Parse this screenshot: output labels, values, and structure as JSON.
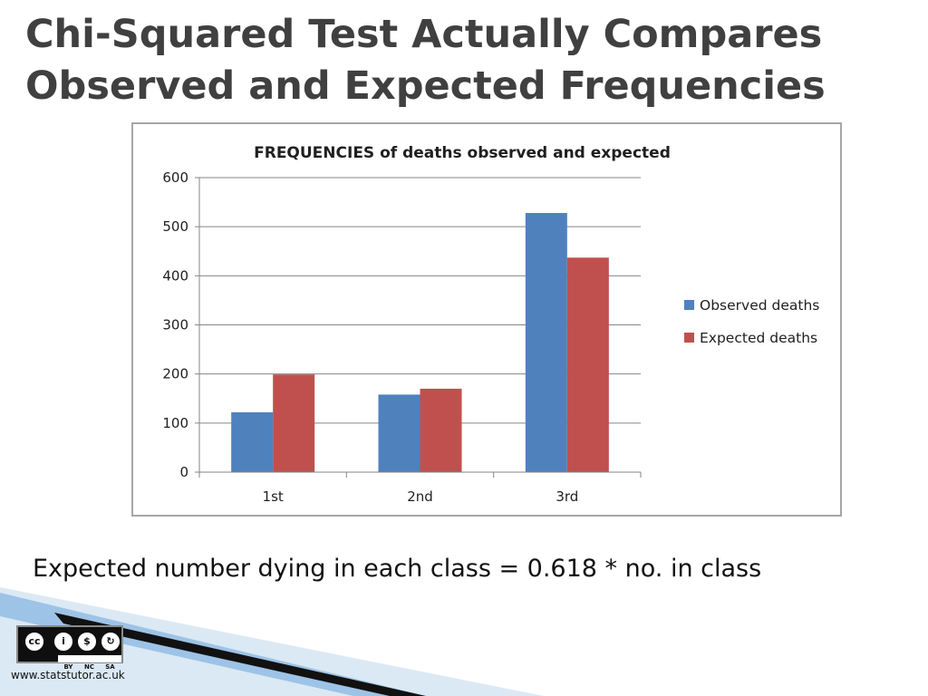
{
  "slide": {
    "title_line1": "Chi-Squared Test Actually Compares",
    "title_line2": "Observed and Expected Frequencies",
    "formula": "Expected number dying in each class = 0.618 * no. in class",
    "url": "www.statstutor.ac.uk",
    "license": {
      "labels": [
        "BY",
        "NC",
        "SA"
      ],
      "icon": "creative-commons-license-icon"
    }
  },
  "chart_data": {
    "type": "bar",
    "title": "FREQUENCIES of deaths observed and expected",
    "categories": [
      "1st",
      "2nd",
      "3rd"
    ],
    "series": [
      {
        "name": "Observed deaths",
        "values": [
          122,
          158,
          528
        ],
        "color": "#4f81bd"
      },
      {
        "name": "Expected deaths",
        "values": [
          199,
          170,
          437
        ],
        "color": "#c0504d"
      }
    ],
    "xlabel": "",
    "ylabel": "",
    "ylim": [
      0,
      600
    ],
    "yticks": [
      0,
      100,
      200,
      300,
      400,
      500,
      600
    ],
    "grid": true,
    "legend": "right"
  }
}
